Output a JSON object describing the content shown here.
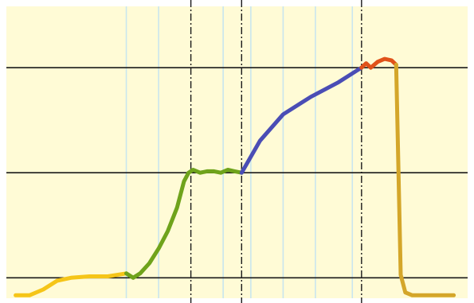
{
  "chart_data": {
    "type": "line",
    "title": "",
    "xlabel": "",
    "ylabel": "",
    "colors": {
      "background": "#FFFBD6",
      "grid_major": "#1a1a1a",
      "grid_minor": "#C9E6EE",
      "divider": "#1a1a1a"
    },
    "xlim": [
      0,
      100
    ],
    "ylim": [
      0,
      100
    ],
    "major_horizontal_lines": [
      7,
      43,
      79
    ],
    "minor_vertical_lines": [
      26,
      33,
      47,
      53,
      60,
      67,
      75
    ],
    "divider_lines": [
      40,
      51,
      77
    ],
    "series": [
      {
        "color": "#F5C518",
        "points": [
          [
            2,
            1
          ],
          [
            5,
            1
          ],
          [
            8,
            3
          ],
          [
            11,
            6
          ],
          [
            14,
            7
          ],
          [
            18,
            7.5
          ],
          [
            22,
            7.5
          ],
          [
            26,
            8.5
          ]
        ]
      },
      {
        "color": "#6FA31B",
        "points": [
          [
            26,
            8.5
          ],
          [
            27.5,
            7
          ],
          [
            29,
            8.5
          ],
          [
            31,
            12
          ],
          [
            33,
            17
          ],
          [
            35,
            23
          ],
          [
            37,
            31
          ],
          [
            38.5,
            40
          ],
          [
            39.5,
            43
          ],
          [
            40.5,
            44
          ],
          [
            42,
            43
          ],
          [
            43.5,
            43.5
          ],
          [
            45,
            43.5
          ],
          [
            46.5,
            43
          ],
          [
            48,
            44
          ],
          [
            49.5,
            43.5
          ],
          [
            51,
            43
          ]
        ]
      },
      {
        "color": "#4A4DB5",
        "points": [
          [
            51,
            43
          ],
          [
            55,
            54
          ],
          [
            60,
            63
          ],
          [
            66,
            69
          ],
          [
            72,
            74
          ],
          [
            76,
            78
          ],
          [
            77,
            79
          ]
        ]
      },
      {
        "color": "#E0521A",
        "points": [
          [
            77,
            79
          ],
          [
            78,
            80.5
          ],
          [
            79,
            79
          ],
          [
            80.5,
            81
          ],
          [
            82,
            82
          ],
          [
            83.5,
            81.5
          ],
          [
            84.5,
            80
          ]
        ]
      },
      {
        "color": "#D4A62A",
        "points": [
          [
            84.5,
            80
          ],
          [
            85.5,
            8
          ],
          [
            86.5,
            2
          ],
          [
            88,
            1
          ],
          [
            92,
            1
          ],
          [
            97,
            1
          ]
        ]
      }
    ]
  }
}
